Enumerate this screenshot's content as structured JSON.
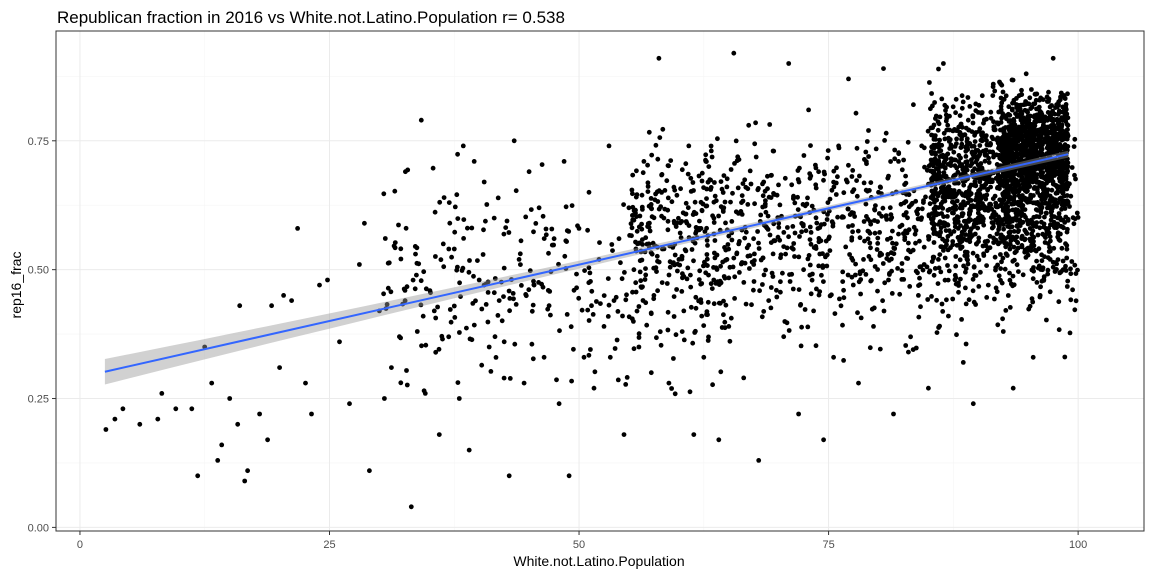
{
  "chart_data": {
    "type": "scatter",
    "title": "Republican fraction in 2016 vs White.not.Latino.Population  r= 0.538",
    "xlabel": "White.not.Latino.Population",
    "ylabel": "rep16_frac",
    "xlim": [
      -2.4,
      106.6
    ],
    "ylim": [
      -0.007,
      0.963
    ],
    "x_ticks": [
      0,
      25,
      50,
      75,
      100
    ],
    "x_tick_labels": [
      "0",
      "25",
      "50",
      "75",
      "100"
    ],
    "y_ticks": [
      0.0,
      0.25,
      0.5,
      0.75
    ],
    "y_tick_labels": [
      "0.00",
      "0.25",
      "0.50",
      "0.75"
    ],
    "grid": true,
    "point_color": "#000000",
    "fit_line": {
      "x": [
        2.5,
        99
      ],
      "y": [
        0.302,
        0.724
      ],
      "color": "#3366FF",
      "band_color": "#999999"
    },
    "series": [
      {
        "points": [
          [
            2.6,
            0.19
          ],
          [
            3.5,
            0.21
          ],
          [
            4.3,
            0.23
          ],
          [
            6,
            0.2
          ],
          [
            7.8,
            0.21
          ],
          [
            8.2,
            0.26
          ],
          [
            9.6,
            0.23
          ],
          [
            11.2,
            0.23
          ],
          [
            11.8,
            0.1
          ],
          [
            12.5,
            0.35
          ],
          [
            13.2,
            0.28
          ],
          [
            13.8,
            0.13
          ],
          [
            14.2,
            0.16
          ],
          [
            15,
            0.25
          ],
          [
            15.8,
            0.2
          ],
          [
            16,
            0.43
          ],
          [
            16.5,
            0.09
          ],
          [
            16.8,
            0.11
          ],
          [
            18,
            0.22
          ],
          [
            18.8,
            0.17
          ],
          [
            19.2,
            0.43
          ],
          [
            20,
            0.31
          ],
          [
            20.4,
            0.45
          ],
          [
            21.2,
            0.44
          ],
          [
            21.8,
            0.58
          ],
          [
            22.6,
            0.28
          ],
          [
            23.2,
            0.22
          ],
          [
            24,
            0.47
          ],
          [
            24.8,
            0.48
          ],
          [
            26,
            0.36
          ],
          [
            27,
            0.24
          ],
          [
            28,
            0.51
          ],
          [
            28.5,
            0.59
          ],
          [
            29,
            0.11
          ],
          [
            30,
            0.42
          ],
          [
            30.5,
            0.25
          ],
          [
            31.2,
            0.31
          ],
          [
            32,
            0.37
          ],
          [
            32.6,
            0.69
          ],
          [
            33.2,
            0.04
          ],
          [
            33.8,
            0.38
          ],
          [
            34.2,
            0.79
          ],
          [
            34.6,
            0.26
          ],
          [
            35.5,
            0.42
          ],
          [
            36,
            0.18
          ],
          [
            36.4,
            0.55
          ],
          [
            37,
            0.63
          ],
          [
            37.5,
            0.54
          ],
          [
            38,
            0.25
          ],
          [
            38.4,
            0.74
          ],
          [
            39,
            0.15
          ],
          [
            39.5,
            0.71
          ],
          [
            40,
            0.48
          ],
          [
            40.5,
            0.67
          ],
          [
            41,
            0.35
          ],
          [
            41.5,
            0.6
          ],
          [
            42,
            0.44
          ],
          [
            42.5,
            0.36
          ],
          [
            43,
            0.1
          ],
          [
            43.5,
            0.75
          ],
          [
            44,
            0.52
          ],
          [
            44.5,
            0.28
          ],
          [
            45,
            0.69
          ],
          [
            45.5,
            0.47
          ],
          [
            46,
            0.62
          ],
          [
            46.5,
            0.33
          ],
          [
            47,
            0.43
          ],
          [
            47.5,
            0.56
          ],
          [
            48,
            0.24
          ],
          [
            48.5,
            0.71
          ],
          [
            49,
            0.1
          ],
          [
            49.5,
            0.46
          ],
          [
            50,
            0.58
          ],
          [
            50.5,
            0.33
          ],
          [
            51,
            0.65
          ],
          [
            51.5,
            0.27
          ],
          [
            52,
            0.52
          ],
          [
            52.5,
            0.39
          ],
          [
            53,
            0.74
          ],
          [
            53.5,
            0.44
          ],
          [
            54,
            0.56
          ],
          [
            54.5,
            0.18
          ],
          [
            55,
            0.62
          ],
          [
            55.5,
            0.5
          ],
          [
            56,
            0.35
          ],
          [
            56.5,
            0.71
          ],
          [
            57,
            0.55
          ],
          [
            57.5,
            0.45
          ],
          [
            58,
            0.91
          ],
          [
            58.5,
            0.6
          ],
          [
            59,
            0.28
          ],
          [
            59.5,
            0.66
          ],
          [
            60,
            0.52
          ],
          [
            60.5,
            0.42
          ],
          [
            61,
            0.74
          ],
          [
            61.5,
            0.18
          ],
          [
            62,
            0.58
          ],
          [
            62.5,
            0.33
          ],
          [
            63,
            0.7
          ],
          [
            63.5,
            0.48
          ],
          [
            64,
            0.17
          ],
          [
            64.5,
            0.62
          ],
          [
            65,
            0.39
          ],
          [
            65.5,
            0.92
          ],
          [
            66,
            0.55
          ],
          [
            66.5,
            0.29
          ],
          [
            67,
            0.78
          ],
          [
            67.5,
            0.51
          ],
          [
            68,
            0.13
          ],
          [
            68.5,
            0.67
          ],
          [
            69,
            0.44
          ],
          [
            69.5,
            0.73
          ],
          [
            70,
            0.59
          ],
          [
            70.5,
            0.37
          ],
          [
            71,
            0.9
          ],
          [
            71.5,
            0.64
          ],
          [
            72,
            0.22
          ],
          [
            72.5,
            0.5
          ],
          [
            73,
            0.81
          ],
          [
            73.5,
            0.42
          ],
          [
            74,
            0.69
          ],
          [
            74.5,
            0.17
          ],
          [
            75,
            0.56
          ],
          [
            75.5,
            0.33
          ],
          [
            76,
            0.74
          ],
          [
            76.5,
            0.46
          ],
          [
            77,
            0.87
          ],
          [
            77.5,
            0.61
          ],
          [
            78,
            0.28
          ],
          [
            78.5,
            0.52
          ],
          [
            79,
            0.77
          ],
          [
            79.5,
            0.39
          ],
          [
            80,
            0.65
          ],
          [
            80.5,
            0.89
          ],
          [
            81,
            0.48
          ],
          [
            81.5,
            0.22
          ],
          [
            82,
            0.71
          ],
          [
            82.5,
            0.57
          ],
          [
            83,
            0.34
          ],
          [
            83.5,
            0.82
          ],
          [
            84,
            0.45
          ],
          [
            84.5,
            0.63
          ],
          [
            85,
            0.27
          ],
          [
            85.5,
            0.76
          ],
          [
            86,
            0.52
          ],
          [
            86.5,
            0.9
          ],
          [
            87,
            0.41
          ],
          [
            87.5,
            0.68
          ],
          [
            88,
            0.58
          ],
          [
            88.5,
            0.32
          ],
          [
            89,
            0.79
          ],
          [
            89.5,
            0.24
          ],
          [
            90,
            0.61
          ],
          [
            90.5,
            0.73
          ],
          [
            91,
            0.47
          ],
          [
            91.5,
            0.86
          ],
          [
            92,
            0.55
          ],
          [
            92.5,
            0.38
          ],
          [
            93,
            0.7
          ],
          [
            93.5,
            0.27
          ],
          [
            94,
            0.8
          ],
          [
            94.2,
            0.64
          ],
          [
            94.5,
            0.49
          ],
          [
            94.8,
            0.88
          ],
          [
            95,
            0.72
          ],
          [
            95.2,
            0.58
          ],
          [
            95.5,
            0.33
          ],
          [
            95.8,
            0.77
          ],
          [
            96,
            0.67
          ],
          [
            96.2,
            0.45
          ],
          [
            96.5,
            0.83
          ],
          [
            96.8,
            0.61
          ],
          [
            97,
            0.74
          ],
          [
            97.2,
            0.52
          ],
          [
            97.5,
            0.91
          ],
          [
            97.8,
            0.69
          ],
          [
            98,
            0.57
          ],
          [
            98.2,
            0.78
          ],
          [
            98.5,
            0.65
          ],
          [
            98.8,
            0.73
          ]
        ],
        "cloud": [
          {
            "xr": [
              55,
              100
            ],
            "yr": [
              0.3,
              0.85
            ],
            "n": 1100,
            "seed": 7
          },
          {
            "xr": [
              85,
              99
            ],
            "yr": [
              0.45,
              0.9
            ],
            "n": 1200,
            "seed": 11
          },
          {
            "xr": [
              92,
              99
            ],
            "yr": [
              0.6,
              0.88
            ],
            "n": 700,
            "seed": 23
          },
          {
            "xr": [
              30,
              65
            ],
            "yr": [
              0.2,
              0.75
            ],
            "n": 320,
            "seed": 41
          }
        ]
      }
    ]
  }
}
